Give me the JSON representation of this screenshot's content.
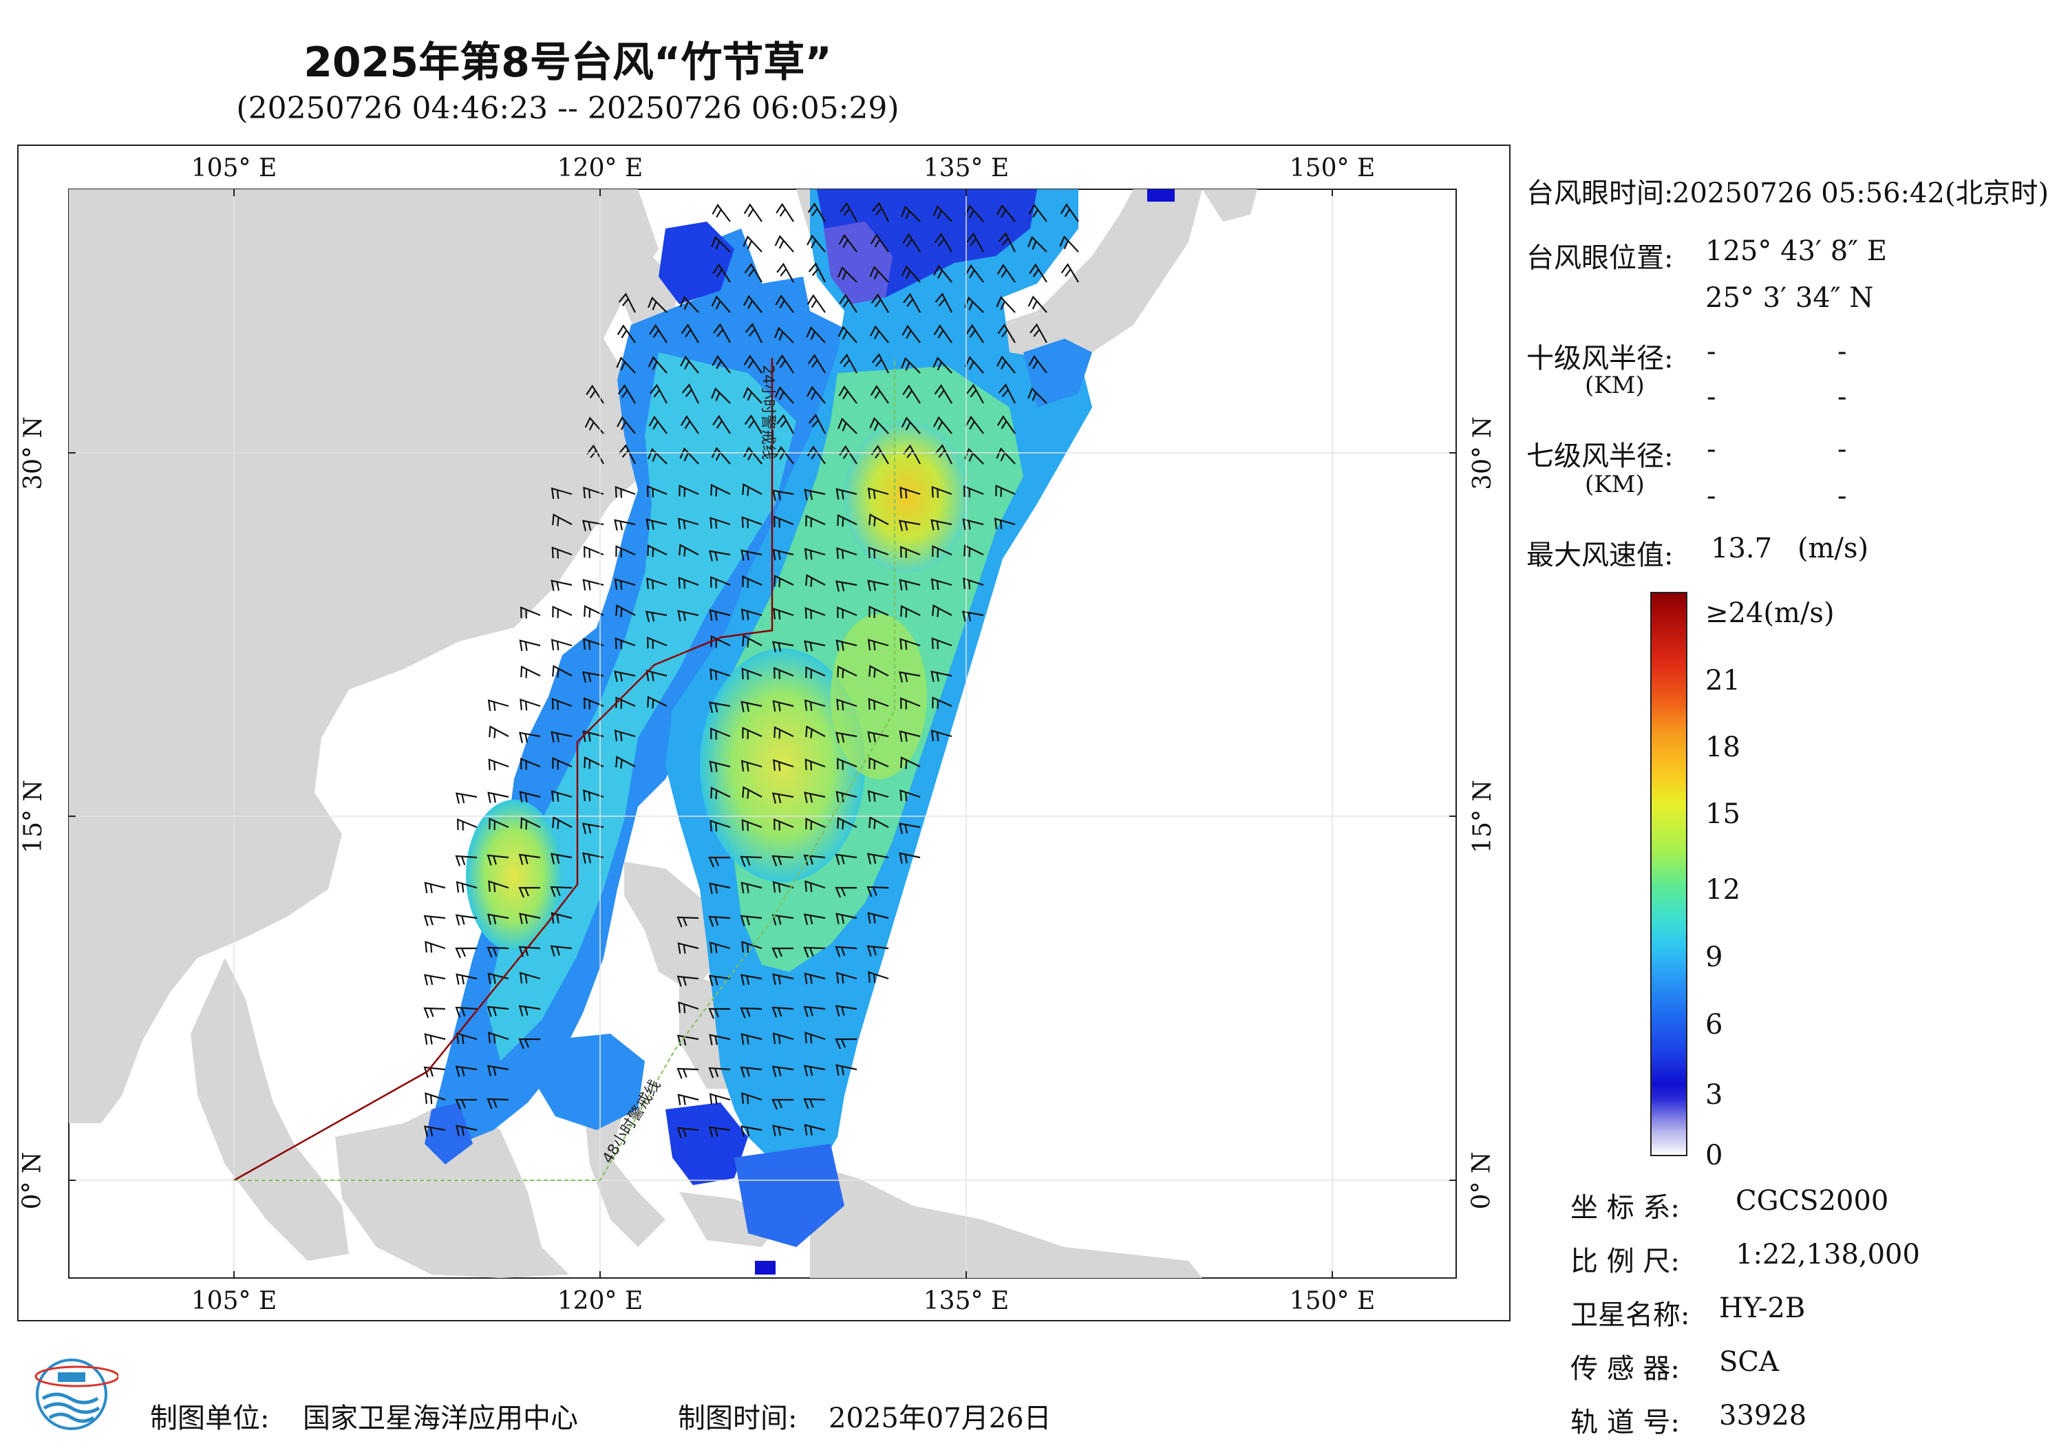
{
  "title": "2025年第8号台风“竹节草”",
  "subtitle": "(20250726 04:46:23 -- 20250726 06:05:29)",
  "map": {
    "lon_ticks": [
      "105° E",
      "120° E",
      "135° E",
      "150° E"
    ],
    "lat_ticks": [
      "30° N",
      "15° N",
      "0° N"
    ],
    "line_24h": "24小时警戒线",
    "line_48h": "48小时警戒线",
    "colors": {
      "land": "#d6d6d6",
      "sea": "#ffffff",
      "line_24h": "#8b0000",
      "line_48h": "#7fc15a"
    }
  },
  "info": {
    "eye_time_label": "台风眼时间:",
    "eye_time_value": "20250726 05:56:42(北京时)",
    "eye_pos_label": "台风眼位置:",
    "eye_lon": "125° 43′ 8″ E",
    "eye_lat": "25° 3′ 34″ N",
    "r10_label": "十级风半径:",
    "r7_label": "七级风半径:",
    "km_label": "(KM)",
    "dash": "-",
    "max_wind_label": "最大风速值:",
    "max_wind_value": "13.7",
    "max_wind_unit": "(m/s)"
  },
  "colorbar": {
    "labels": [
      "≥24(m/s)",
      "21",
      "18",
      "15",
      "12",
      "9",
      "6",
      "3",
      "0"
    ]
  },
  "meta": {
    "crs_label": "坐 标 系:",
    "crs_value": "CGCS2000",
    "scale_label": "比 例 尺:",
    "scale_value": "1:22,138,000",
    "satellite_label": "卫星名称:",
    "satellite_value": "HY-2B",
    "sensor_label": "传 感 器:",
    "sensor_value": "SCA",
    "orbit_label": "轨 道 号:",
    "orbit_value": "33928"
  },
  "footer": {
    "unit_label": "制图单位:",
    "unit_value": "国家卫星海洋应用中心",
    "time_label": "制图时间:",
    "time_value": "2025年07月26日"
  }
}
